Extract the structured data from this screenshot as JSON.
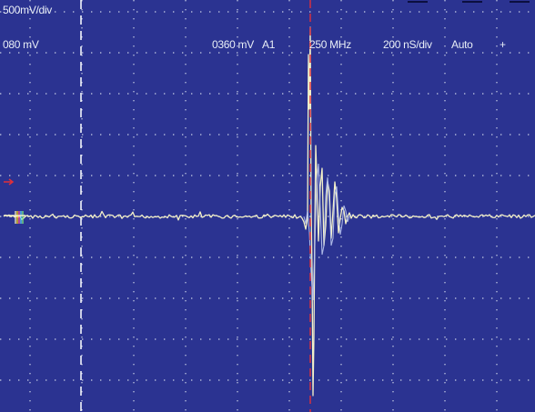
{
  "scope": {
    "volts_per_div": "500mV/div",
    "offset": "080 mV",
    "trigger_level": "0360 mV",
    "trigger_channel": "A1",
    "bandwidth": "250 MHz",
    "time_per_div": "200 nS/div",
    "trigger_mode": "Auto",
    "trigger_slope": "+"
  },
  "colors": {
    "screen_bg": "#2b3391",
    "grid": "#e6ecf5",
    "trace_main": "#f4f1c8",
    "trace_secondary": "#b8c4ee",
    "trigger_marker": "#e0303a"
  }
}
